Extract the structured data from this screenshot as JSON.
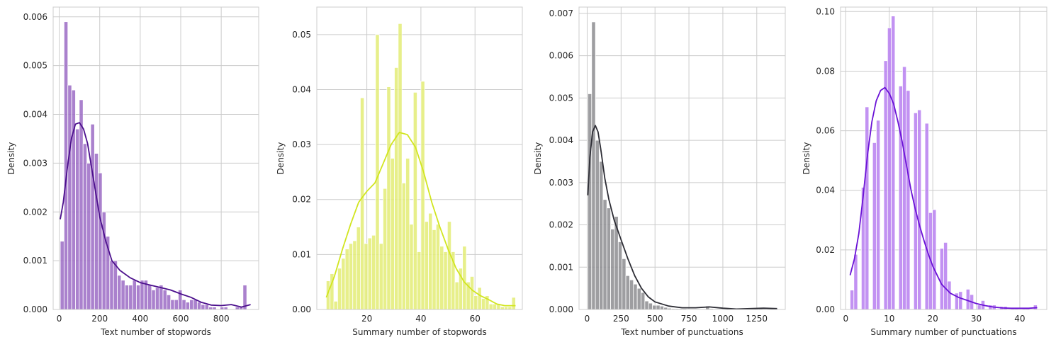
{
  "chart_data": [
    {
      "type": "bar",
      "subtype": "histogram-with-kde",
      "xlabel": "Text number of stopwords",
      "ylabel": "Density",
      "xlim": [
        -30,
        985
      ],
      "ylim": [
        0,
        0.0062
      ],
      "xticks": [
        0,
        200,
        400,
        600,
        800
      ],
      "yticks": [
        0.0,
        0.001,
        0.002,
        0.003,
        0.004,
        0.005,
        0.006
      ],
      "ytick_decimals": 3,
      "grid": true,
      "bar_color": "#9b6bc4",
      "line_color": "#4b0f8c",
      "bins": {
        "start": 5,
        "width": 18.8,
        "values": [
          0.0014,
          0.0059,
          0.0046,
          0.0045,
          0.0037,
          0.0043,
          0.0034,
          0.003,
          0.0038,
          0.0032,
          0.0028,
          0.002,
          0.0015,
          0.001,
          0.001,
          0.0007,
          0.0006,
          0.0005,
          0.0005,
          0.0006,
          0.0005,
          0.0006,
          0.0006,
          0.0005,
          0.0004,
          0.00045,
          0.0005,
          0.0004,
          0.0003,
          0.0002,
          0.0002,
          0.0004,
          0.0002,
          0.00015,
          0.0002,
          0.0002,
          0.00015,
          0.0001,
          0.0001,
          5e-05,
          5e-05,
          0.0,
          5e-05,
          5e-05,
          0.0,
          0.0,
          5e-05,
          5e-05,
          0.0005
        ]
      },
      "kde": {
        "x": [
          5,
          20,
          40,
          60,
          80,
          100,
          120,
          140,
          160,
          180,
          200,
          230,
          260,
          300,
          350,
          400,
          450,
          500,
          550,
          600,
          650,
          700,
          750,
          800,
          850,
          900,
          945
        ],
        "y": [
          0.00185,
          0.0022,
          0.0029,
          0.0035,
          0.0038,
          0.00383,
          0.0037,
          0.0034,
          0.0029,
          0.0024,
          0.0019,
          0.0014,
          0.001,
          0.0008,
          0.00065,
          0.00055,
          0.0005,
          0.00045,
          0.0004,
          0.00032,
          0.00025,
          0.00015,
          9e-05,
          8e-05,
          0.0001,
          5e-05,
          0.0001
        ]
      }
    },
    {
      "type": "bar",
      "subtype": "histogram-with-kde",
      "xlabel": "Summary number of stopwords",
      "ylabel": "Density",
      "xlim": [
        1.5,
        77.5
      ],
      "ylim": [
        0,
        0.055
      ],
      "xticks": [
        20,
        40,
        60
      ],
      "yticks": [
        0.0,
        0.01,
        0.02,
        0.03,
        0.04,
        0.05
      ],
      "ytick_decimals": 2,
      "grid": true,
      "bar_color": "#e3ec75",
      "line_color": "#d1e51f",
      "bins": {
        "start": 5,
        "width": 1.4,
        "values": [
          0.0052,
          0.0065,
          0.0015,
          0.0075,
          0.0093,
          0.011,
          0.012,
          0.0125,
          0.015,
          0.0385,
          0.012,
          0.013,
          0.0135,
          0.05,
          0.012,
          0.022,
          0.0405,
          0.0275,
          0.044,
          0.052,
          0.023,
          0.0275,
          0.0155,
          0.0395,
          0.0105,
          0.0415,
          0.016,
          0.0175,
          0.0145,
          0.0155,
          0.0115,
          0.0105,
          0.016,
          0.0105,
          0.005,
          0.0075,
          0.0115,
          0.005,
          0.006,
          0.0025,
          0.004,
          0.002,
          0.0025,
          0.001,
          0.001,
          0.001,
          0.0005,
          0.0005,
          0.0005,
          0.0022
        ]
      },
      "kde": {
        "x": [
          5,
          8,
          11,
          14,
          17,
          20,
          23,
          26,
          29,
          32,
          35,
          38,
          41,
          44,
          47,
          50,
          53,
          56,
          59,
          62,
          65,
          68,
          71,
          75
        ],
        "y": [
          0.0022,
          0.006,
          0.011,
          0.0155,
          0.0195,
          0.0215,
          0.023,
          0.0265,
          0.03,
          0.0322,
          0.0318,
          0.0295,
          0.025,
          0.0195,
          0.015,
          0.011,
          0.0075,
          0.005,
          0.0035,
          0.0025,
          0.0018,
          0.001,
          0.0007,
          0.0007
        ]
      }
    },
    {
      "type": "bar",
      "subtype": "histogram-with-kde",
      "xlabel": "Text number of punctuations",
      "ylabel": "Density",
      "xlim": [
        -60,
        1460
      ],
      "ylim": [
        0,
        0.00715
      ],
      "xticks": [
        0,
        250,
        500,
        750,
        1000,
        1250
      ],
      "yticks": [
        0.0,
        0.001,
        0.002,
        0.003,
        0.004,
        0.005,
        0.006,
        0.007
      ],
      "ytick_decimals": 3,
      "grid": true,
      "bar_color": "#8d8d91",
      "line_color": "#2c2c34",
      "bins": {
        "start": 5,
        "width": 28,
        "values": [
          0.0051,
          0.0068,
          0.004,
          0.0035,
          0.0026,
          0.0024,
          0.0019,
          0.0022,
          0.0016,
          0.0012,
          0.0008,
          0.0007,
          0.0006,
          0.0005,
          0.0004,
          0.0002,
          0.00015,
          0.0001,
          0.0001,
          8e-05,
          5e-05,
          3e-05,
          2e-05,
          2e-05,
          2e-05,
          2e-05,
          1e-05,
          1e-05,
          0.0,
          0.0,
          0.0,
          8e-05,
          2e-05,
          0.0,
          0.0,
          0.0,
          0.0,
          0.0,
          0.0,
          0.0,
          0.0,
          0.0,
          0.0,
          0.0,
          2e-05,
          3e-05,
          0.0,
          0.0,
          0.0,
          2e-05
        ]
      },
      "kde": {
        "x": [
          5,
          20,
          40,
          60,
          80,
          100,
          130,
          160,
          200,
          250,
          300,
          350,
          400,
          450,
          500,
          600,
          700,
          800,
          900,
          1000,
          1100,
          1200,
          1300,
          1400
        ],
        "y": [
          0.0027,
          0.0036,
          0.0042,
          0.00435,
          0.0042,
          0.0038,
          0.0031,
          0.0026,
          0.0021,
          0.00165,
          0.0012,
          0.0008,
          0.0005,
          0.0003,
          0.00018,
          8e-05,
          4e-05,
          4e-05,
          6e-05,
          3e-05,
          1e-05,
          2e-05,
          3e-05,
          2e-05
        ]
      }
    },
    {
      "type": "bar",
      "subtype": "histogram-with-kde",
      "xlabel": "Summary number of punctuations",
      "ylabel": "Density",
      "xlim": [
        -1.2,
        46.2
      ],
      "ylim": [
        0,
        0.1015
      ],
      "xticks": [
        0,
        10,
        20,
        30,
        40
      ],
      "yticks": [
        0.0,
        0.02,
        0.04,
        0.06,
        0.08,
        0.1
      ],
      "ytick_decimals": 2,
      "grid": true,
      "bar_color": "#b77ff0",
      "line_color": "#6a12d6",
      "bins": {
        "start": 1,
        "width": 0.86,
        "values": [
          0.0065,
          0.0185,
          0.0,
          0.041,
          0.068,
          0.0,
          0.056,
          0.0635,
          0.0,
          0.0835,
          0.0945,
          0.0985,
          0.0,
          0.075,
          0.0815,
          0.0735,
          0.0,
          0.066,
          0.067,
          0.0,
          0.0625,
          0.0325,
          0.0335,
          0.0,
          0.0205,
          0.0225,
          0.0095,
          0.0,
          0.0055,
          0.006,
          0.0,
          0.0068,
          0.005,
          0.0,
          0.0015,
          0.003,
          0.0,
          0.0015,
          0.0015,
          0.0,
          0.001,
          0.001,
          0.0,
          0.0005,
          0.0005,
          0.0,
          0.0005,
          0.0005,
          0.0,
          0.0015
        ]
      },
      "kde": {
        "x": [
          1,
          2,
          3,
          4,
          5,
          6,
          7,
          8,
          9,
          10,
          11,
          12,
          13,
          14,
          15,
          16,
          17,
          18,
          19,
          20,
          22,
          24,
          26,
          28,
          30,
          32,
          34,
          36,
          38,
          40,
          42,
          44
        ],
        "y": [
          0.0115,
          0.017,
          0.0255,
          0.038,
          0.052,
          0.063,
          0.07,
          0.0735,
          0.0745,
          0.0725,
          0.069,
          0.063,
          0.056,
          0.048,
          0.04,
          0.0335,
          0.028,
          0.023,
          0.0185,
          0.0145,
          0.0085,
          0.0055,
          0.004,
          0.003,
          0.002,
          0.0013,
          0.0008,
          0.0005,
          0.0004,
          0.0004,
          0.0004,
          0.0006
        ]
      }
    }
  ]
}
